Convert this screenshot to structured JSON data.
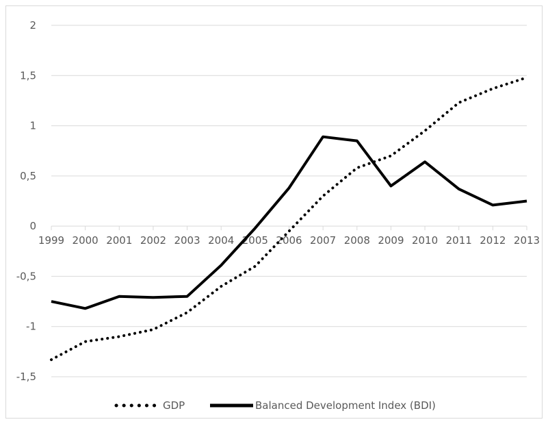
{
  "chart_data": {
    "type": "line",
    "title": "",
    "xlabel": "",
    "ylabel": "",
    "categories": [
      "1999",
      "2000",
      "2001",
      "2002",
      "2003",
      "2004",
      "2005",
      "2006",
      "2007",
      "2008",
      "2009",
      "2010",
      "2011",
      "2012",
      "2013"
    ],
    "ylim": [
      -1.5,
      2
    ],
    "yticks": [
      2,
      1.5,
      1,
      0.5,
      0,
      -0.5,
      -1,
      -1.5
    ],
    "ytick_labels": [
      "2",
      "1,5",
      "1",
      "0,5",
      "0",
      "-0,5",
      "-1",
      "-1,5"
    ],
    "grid": true,
    "legend_position": "bottom",
    "series": [
      {
        "name": "GDP",
        "style": "dotted",
        "color": "#000000",
        "values": [
          -1.33,
          -1.15,
          -1.1,
          -1.03,
          -0.86,
          -0.6,
          -0.4,
          -0.05,
          0.3,
          0.58,
          0.7,
          0.95,
          1.23,
          1.37,
          1.48
        ]
      },
      {
        "name": "Balanced Development Index (BDI)",
        "style": "solid",
        "color": "#000000",
        "values": [
          -0.75,
          -0.82,
          -0.7,
          -0.71,
          -0.7,
          -0.39,
          -0.02,
          0.38,
          0.89,
          0.85,
          0.4,
          0.64,
          0.37,
          0.21,
          0.25
        ]
      }
    ]
  }
}
